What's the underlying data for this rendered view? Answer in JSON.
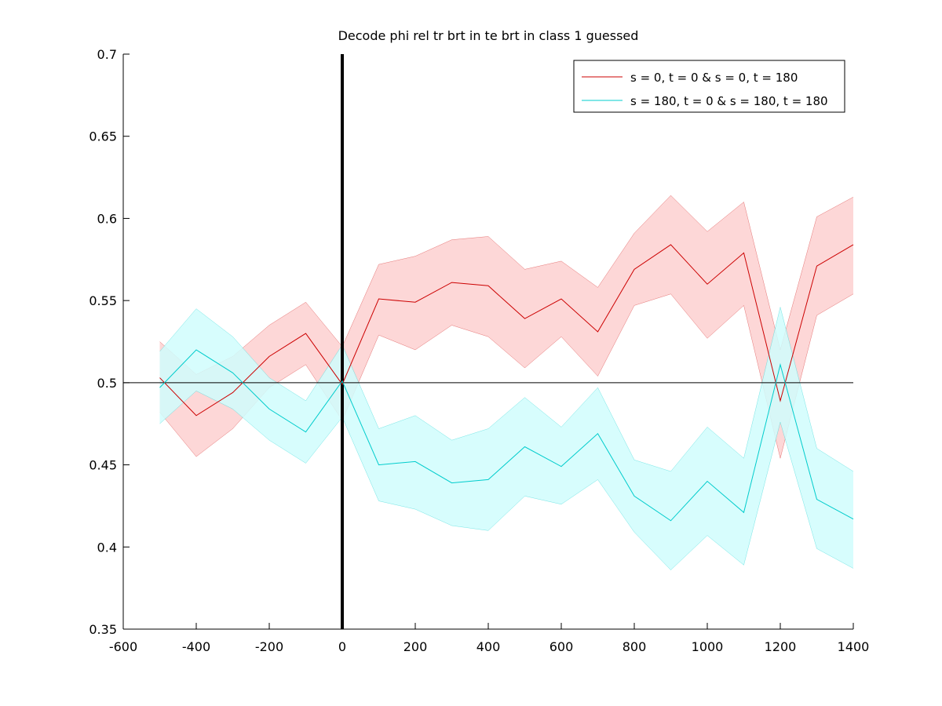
{
  "chart_data": {
    "type": "line",
    "title": "Decode phi rel tr brt in te brt in  class 1 guessed",
    "xlabel": "",
    "ylabel": "",
    "xlim": [
      -600,
      1400
    ],
    "ylim": [
      0.35,
      0.7
    ],
    "xticks": [
      -600,
      -400,
      -200,
      0,
      200,
      400,
      600,
      800,
      1000,
      1200,
      1400
    ],
    "xtick_labels": [
      "-600",
      "-400",
      "-200",
      "0",
      "200",
      "400",
      "600",
      "800",
      "1000",
      "1200",
      "1400"
    ],
    "yticks": [
      0.35,
      0.4,
      0.45,
      0.5,
      0.55,
      0.6,
      0.65,
      0.7
    ],
    "ytick_labels": [
      "0.35",
      "0.4",
      "0.45",
      "0.5",
      "0.55",
      "0.6",
      "0.65",
      "0.7"
    ],
    "grid": false,
    "legend_position": "top-right",
    "reference_lines": {
      "vertical_x": 0,
      "horizontal_y": 0.5
    },
    "x": [
      -500,
      -400,
      -300,
      -200,
      -100,
      0,
      100,
      200,
      300,
      400,
      500,
      600,
      700,
      800,
      900,
      1000,
      1100,
      1200,
      1300,
      1400
    ],
    "series": [
      {
        "name": "s = 0, t = 0 & s = 0, t = 180",
        "color": "#cc0000",
        "fill_color": "#fdd0d0",
        "values": [
          0.503,
          0.48,
          0.494,
          0.516,
          0.53,
          0.499,
          0.551,
          0.549,
          0.561,
          0.559,
          0.539,
          0.551,
          0.531,
          0.569,
          0.584,
          0.56,
          0.579,
          0.489,
          0.571,
          0.584
        ],
        "upper": [
          0.525,
          0.505,
          0.516,
          0.535,
          0.549,
          0.522,
          0.572,
          0.577,
          0.587,
          0.589,
          0.569,
          0.574,
          0.558,
          0.591,
          0.614,
          0.592,
          0.61,
          0.52,
          0.601,
          0.613
        ],
        "lower": [
          0.482,
          0.455,
          0.472,
          0.497,
          0.511,
          0.477,
          0.529,
          0.52,
          0.535,
          0.528,
          0.509,
          0.528,
          0.504,
          0.547,
          0.554,
          0.527,
          0.547,
          0.454,
          0.541,
          0.554
        ]
      },
      {
        "name": "s = 180, t = 0 & s = 180, t = 180",
        "color": "#00cccc",
        "fill_color": "#d0fdfd",
        "values": [
          0.497,
          0.52,
          0.506,
          0.484,
          0.47,
          0.501,
          0.45,
          0.452,
          0.439,
          0.441,
          0.461,
          0.449,
          0.469,
          0.431,
          0.416,
          0.44,
          0.421,
          0.511,
          0.429,
          0.417
        ],
        "upper": [
          0.519,
          0.545,
          0.528,
          0.503,
          0.489,
          0.523,
          0.472,
          0.48,
          0.465,
          0.472,
          0.491,
          0.473,
          0.497,
          0.453,
          0.446,
          0.473,
          0.454,
          0.546,
          0.46,
          0.446
        ],
        "lower": [
          0.475,
          0.495,
          0.484,
          0.465,
          0.451,
          0.479,
          0.428,
          0.423,
          0.413,
          0.41,
          0.431,
          0.426,
          0.441,
          0.409,
          0.386,
          0.407,
          0.389,
          0.476,
          0.399,
          0.387
        ]
      }
    ]
  }
}
